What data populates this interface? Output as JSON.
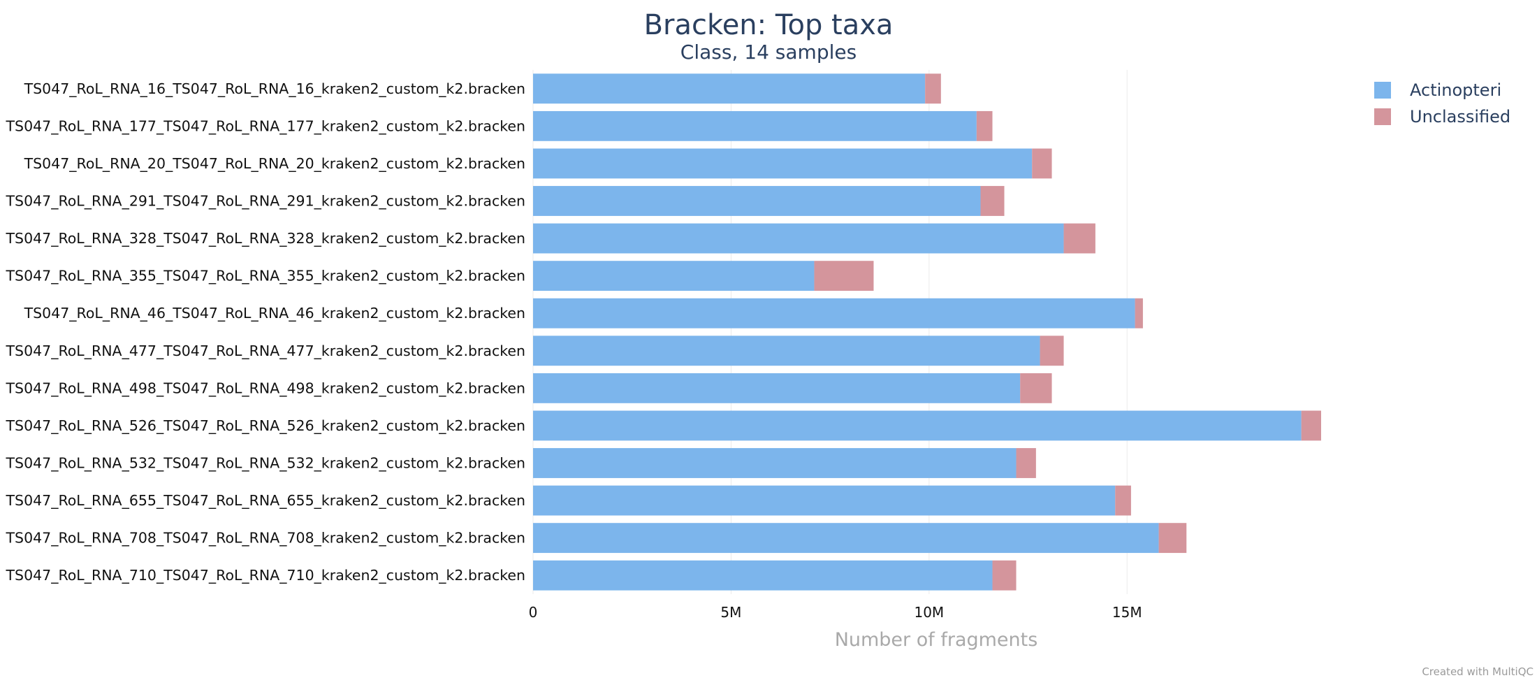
{
  "chart_data": {
    "type": "bar",
    "orientation": "horizontal",
    "stacked": true,
    "title": "Bracken: Top taxa",
    "subtitle": "Class, 14 samples",
    "xlabel": "Number of fragments",
    "ylabel": "",
    "xlim": [
      0,
      20500000
    ],
    "x_ticks": [
      {
        "value": 0,
        "label": "0"
      },
      {
        "value": 5000000,
        "label": "5M"
      },
      {
        "value": 10000000,
        "label": "10M"
      },
      {
        "value": 15000000,
        "label": "15M"
      }
    ],
    "grid": "vertical",
    "legend_position": "top-right",
    "categories": [
      "TS047_RoL_RNA_16_TS047_RoL_RNA_16_kraken2_custom_k2.bracken",
      "TS047_RoL_RNA_177_TS047_RoL_RNA_177_kraken2_custom_k2.bracken",
      "TS047_RoL_RNA_20_TS047_RoL_RNA_20_kraken2_custom_k2.bracken",
      "TS047_RoL_RNA_291_TS047_RoL_RNA_291_kraken2_custom_k2.bracken",
      "TS047_RoL_RNA_328_TS047_RoL_RNA_328_kraken2_custom_k2.bracken",
      "TS047_RoL_RNA_355_TS047_RoL_RNA_355_kraken2_custom_k2.bracken",
      "TS047_RoL_RNA_46_TS047_RoL_RNA_46_kraken2_custom_k2.bracken",
      "TS047_RoL_RNA_477_TS047_RoL_RNA_477_kraken2_custom_k2.bracken",
      "TS047_RoL_RNA_498_TS047_RoL_RNA_498_kraken2_custom_k2.bracken",
      "TS047_RoL_RNA_526_TS047_RoL_RNA_526_kraken2_custom_k2.bracken",
      "TS047_RoL_RNA_532_TS047_RoL_RNA_532_kraken2_custom_k2.bracken",
      "TS047_RoL_RNA_655_TS047_RoL_RNA_655_kraken2_custom_k2.bracken",
      "TS047_RoL_RNA_708_TS047_RoL_RNA_708_kraken2_custom_k2.bracken",
      "TS047_RoL_RNA_710_TS047_RoL_RNA_710_kraken2_custom_k2.bracken"
    ],
    "series": [
      {
        "name": "Actinopteri",
        "color": "#7cb5ec",
        "values": [
          9900000,
          11200000,
          12600000,
          11300000,
          13400000,
          7100000,
          15200000,
          12800000,
          12300000,
          19400000,
          12200000,
          14700000,
          15800000,
          11600000
        ]
      },
      {
        "name": "Unclassified",
        "color": "#d4959c",
        "values": [
          400000,
          400000,
          500000,
          600000,
          800000,
          1500000,
          200000,
          600000,
          800000,
          500000,
          500000,
          400000,
          700000,
          600000
        ]
      }
    ]
  },
  "credit": "Created with MultiQC"
}
